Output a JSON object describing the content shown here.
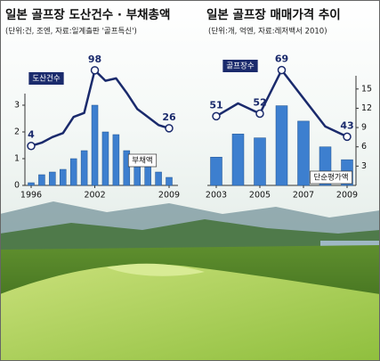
{
  "chart_data": [
    {
      "type": "bar-line",
      "title": "일본 골프장 도산건수 · 부채총액",
      "subtitle": "(단위:건, 조엔, 자료:일계출판 '골프특신')",
      "x": [
        1996,
        1997,
        1998,
        1999,
        2000,
        2001,
        2002,
        2003,
        2004,
        2005,
        2006,
        2007,
        2008,
        2009
      ],
      "xticks": [
        1996,
        2002,
        2009
      ],
      "ylim": [
        0,
        3.3
      ],
      "yticks": [
        0,
        1,
        2,
        3
      ],
      "y2lim": [
        -45,
        110
      ],
      "series": [
        {
          "name": "부채액",
          "kind": "bar",
          "color": "#3d7fcf",
          "values": [
            0.1,
            0.4,
            0.5,
            0.6,
            1.0,
            1.3,
            3.0,
            2.0,
            1.9,
            1.3,
            0.7,
            0.7,
            0.5,
            0.3
          ]
        },
        {
          "name": "도산건수",
          "kind": "line",
          "axis": "y2",
          "color": "#1a2a6c",
          "values": [
            4,
            8,
            15,
            20,
            40,
            45,
            98,
            85,
            88,
            70,
            50,
            40,
            30,
            26
          ],
          "value_labels": [
            "4",
            null,
            null,
            null,
            null,
            null,
            "98",
            null,
            null,
            null,
            null,
            null,
            null,
            "26"
          ]
        }
      ]
    },
    {
      "type": "bar-line",
      "title": "일본 골프장 매매가격 추이",
      "subtitle": "(단위:개, 억엔, 자료:레저백서 2010)",
      "x": [
        2003,
        2004,
        2005,
        2006,
        2007,
        2008,
        2009
      ],
      "xticks": [
        2003,
        2005,
        2007,
        2009
      ],
      "ylim": [
        0,
        16.5
      ],
      "yticks": [
        3,
        6,
        9,
        12,
        15
      ],
      "y2lim": [
        24,
        72
      ],
      "series": [
        {
          "name": "단순평가액",
          "kind": "bar",
          "color": "#3d7fcf",
          "values": [
            4.4,
            8,
            7.4,
            12.4,
            10,
            6,
            4
          ]
        },
        {
          "name": "골프장수",
          "kind": "line",
          "axis": "y2",
          "color": "#1a2a6c",
          "values": [
            51,
            56,
            52,
            69,
            58,
            47,
            43
          ],
          "value_labels": [
            "51",
            null,
            "52",
            "69",
            null,
            null,
            "43"
          ]
        }
      ]
    }
  ]
}
